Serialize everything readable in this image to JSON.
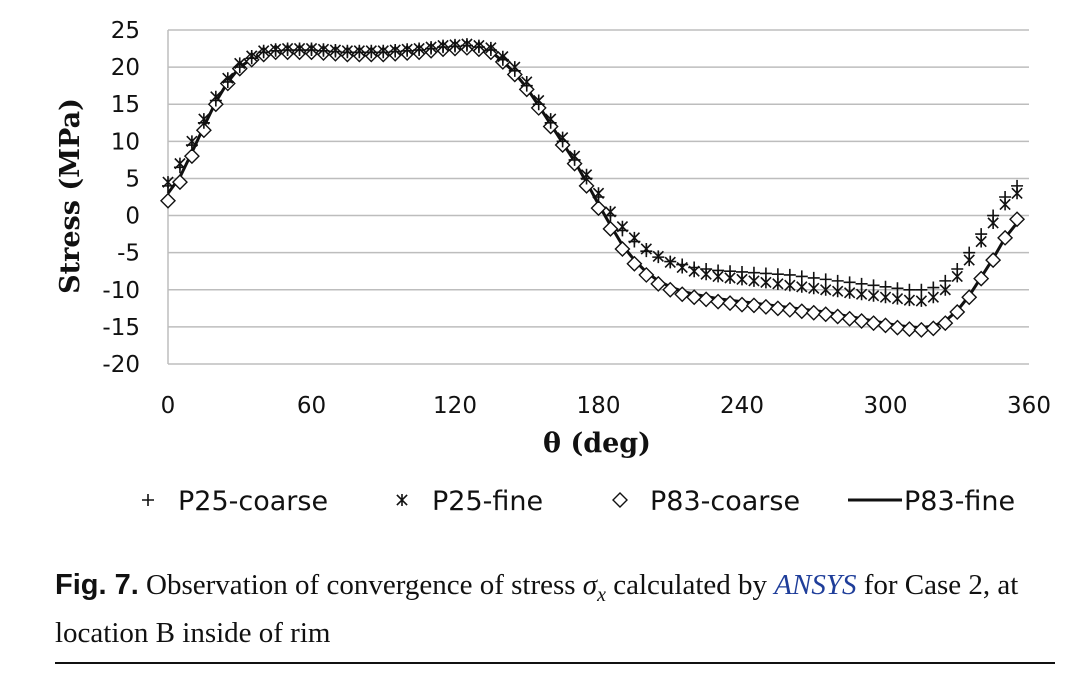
{
  "chart_data": {
    "type": "line",
    "xlabel": "θ (deg)",
    "ylabel": "Stress (MPa)",
    "xlim": [
      0,
      360
    ],
    "ylim": [
      -20,
      25
    ],
    "xticks": [
      0,
      60,
      120,
      180,
      240,
      300,
      360
    ],
    "yticks": [
      25,
      20,
      15,
      10,
      5,
      0,
      -5,
      -10,
      -15,
      -20
    ],
    "grid": "horizontal",
    "legend": "bottom",
    "x": [
      0,
      5,
      10,
      15,
      20,
      25,
      30,
      35,
      40,
      45,
      50,
      55,
      60,
      65,
      70,
      75,
      80,
      85,
      90,
      95,
      100,
      105,
      110,
      115,
      120,
      125,
      130,
      135,
      140,
      145,
      150,
      155,
      160,
      165,
      170,
      175,
      180,
      185,
      190,
      195,
      200,
      205,
      210,
      215,
      220,
      225,
      230,
      235,
      240,
      245,
      250,
      255,
      260,
      265,
      270,
      275,
      280,
      285,
      290,
      295,
      300,
      305,
      310,
      315,
      320,
      325,
      330,
      335,
      340,
      345,
      350,
      355
    ],
    "series": [
      {
        "name": "P25-coarse",
        "marker": "plus",
        "values": [
          4,
          6.5,
          9.5,
          12.5,
          15.5,
          18,
          20,
          21.2,
          22,
          22.2,
          22.3,
          22.3,
          22.3,
          22.2,
          22.1,
          22,
          22,
          22,
          22,
          22.1,
          22.2,
          22.3,
          22.5,
          22.7,
          22.8,
          22.9,
          22.7,
          22.3,
          21,
          19.5,
          17.5,
          15,
          12.5,
          10,
          7.5,
          5,
          2.5,
          0,
          -2,
          -3.5,
          -4.8,
          -5.6,
          -6.2,
          -6.6,
          -7,
          -7.2,
          -7.4,
          -7.5,
          -7.6,
          -7.7,
          -7.8,
          -7.9,
          -8,
          -8.2,
          -8.4,
          -8.6,
          -8.8,
          -9,
          -9.2,
          -9.4,
          -9.6,
          -9.8,
          -10,
          -10,
          -9.7,
          -8.8,
          -7.2,
          -5,
          -2.5,
          0,
          2.5,
          4
        ]
      },
      {
        "name": "P25-fine",
        "marker": "asterisk",
        "values": [
          4.5,
          7,
          10,
          13,
          16,
          18.5,
          20.5,
          21.5,
          22.2,
          22.4,
          22.5,
          22.5,
          22.5,
          22.4,
          22.3,
          22.2,
          22.2,
          22.2,
          22.2,
          22.3,
          22.4,
          22.5,
          22.7,
          22.9,
          23,
          23.1,
          22.9,
          22.6,
          21.4,
          20,
          18,
          15.5,
          13,
          10.5,
          8,
          5.5,
          3,
          0.5,
          -1.5,
          -3,
          -4.5,
          -5.5,
          -6.3,
          -7,
          -7.5,
          -7.9,
          -8.2,
          -8.4,
          -8.6,
          -8.8,
          -9,
          -9.2,
          -9.4,
          -9.6,
          -9.8,
          -10,
          -10.2,
          -10.4,
          -10.6,
          -10.8,
          -11,
          -11.2,
          -11.4,
          -11.5,
          -11,
          -10,
          -8.2,
          -6,
          -3.5,
          -1,
          1.5,
          3
        ]
      },
      {
        "name": "P83-coarse",
        "marker": "diamond",
        "values": [
          2,
          4.5,
          8,
          11.5,
          15,
          17.8,
          19.8,
          21,
          21.7,
          22,
          22,
          22,
          22,
          21.9,
          21.8,
          21.7,
          21.7,
          21.7,
          21.7,
          21.8,
          21.9,
          22,
          22.2,
          22.4,
          22.5,
          22.6,
          22.4,
          22,
          20.7,
          19,
          17,
          14.5,
          12,
          9.5,
          7,
          4,
          1,
          -1.8,
          -4.5,
          -6.5,
          -8,
          -9.2,
          -10,
          -10.6,
          -11,
          -11.3,
          -11.6,
          -11.8,
          -12,
          -12.1,
          -12.3,
          -12.5,
          -12.7,
          -12.9,
          -13.1,
          -13.3,
          -13.6,
          -13.9,
          -14.2,
          -14.5,
          -14.8,
          -15.1,
          -15.3,
          -15.4,
          -15.2,
          -14.5,
          -13,
          -11,
          -8.5,
          -6,
          -3,
          -0.5
        ]
      },
      {
        "name": "P83-fine",
        "marker": "line",
        "values": [
          3,
          5.2,
          8.5,
          12,
          15.3,
          18,
          20,
          21.1,
          21.8,
          22.1,
          22.1,
          22.1,
          22.1,
          22,
          21.9,
          21.8,
          21.8,
          21.8,
          21.8,
          21.9,
          22,
          22.1,
          22.3,
          22.5,
          22.6,
          22.7,
          22.5,
          22.1,
          20.8,
          19.2,
          17.2,
          14.8,
          12.3,
          9.8,
          7.3,
          4.5,
          1.5,
          -1.3,
          -4,
          -6,
          -7.6,
          -8.8,
          -9.6,
          -10.2,
          -10.6,
          -10.9,
          -11.2,
          -11.4,
          -11.6,
          -11.8,
          -12,
          -12.2,
          -12.4,
          -12.6,
          -12.8,
          -13,
          -13.3,
          -13.6,
          -13.9,
          -14.2,
          -14.5,
          -14.8,
          -15,
          -15.1,
          -14.9,
          -14.2,
          -12.8,
          -10.8,
          -8.3,
          -5.8,
          -3,
          -1
        ]
      }
    ]
  },
  "caption": {
    "label": "Fig. 7.",
    "text_before": "Observation of convergence of stress",
    "symbol": "σ",
    "subscript": "x",
    "text_mid": "calculated by",
    "link_text": "ANSYS",
    "text_after": "for Case 2, at location B inside of rim"
  }
}
